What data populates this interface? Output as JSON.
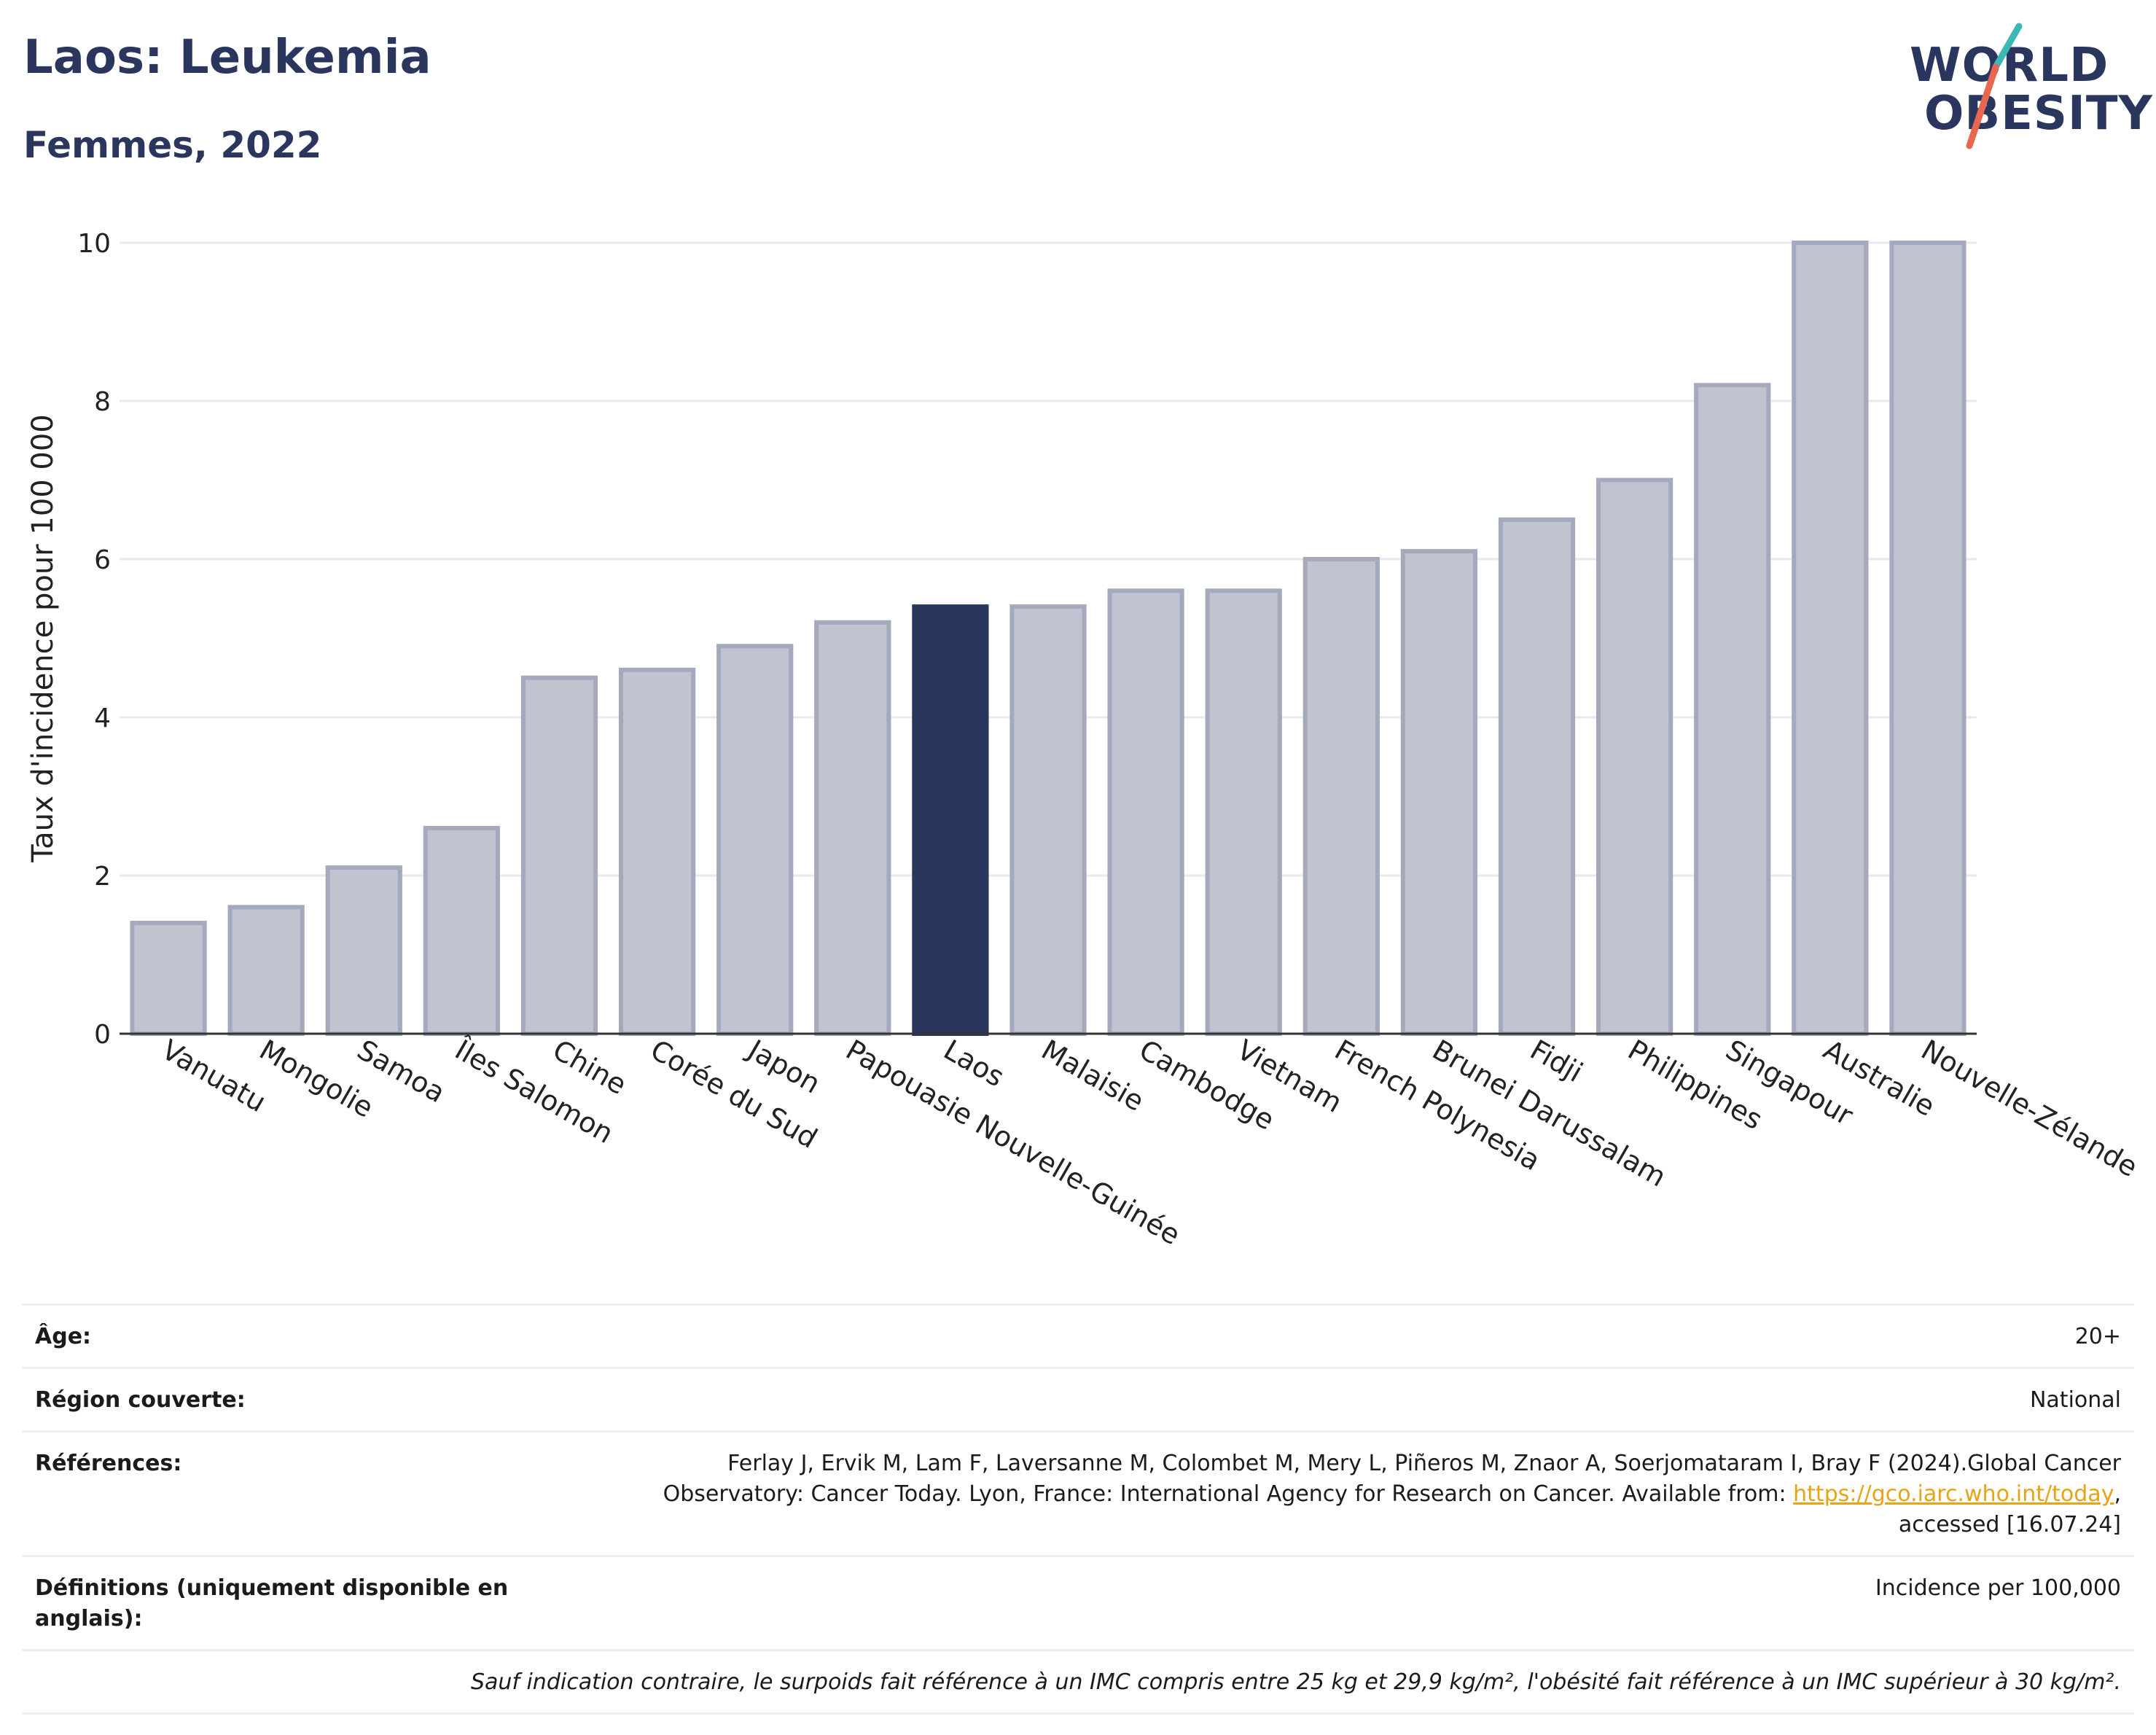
{
  "header": {
    "title": "Laos: Leukemia",
    "subtitle": "Femmes, 2022"
  },
  "logo": {
    "line1": "WORLD",
    "line2": "OBESITY",
    "text_color": "#2b365f",
    "slash_colors": [
      "#3bb8b4",
      "#e8674f"
    ]
  },
  "colors": {
    "bar_default": "#c0c3d0",
    "bar_border": "#a4a9bd",
    "bar_highlight": "#2b365f",
    "grid": "#e8e9ee",
    "axis": "#333333"
  },
  "chart_data": {
    "type": "bar",
    "title": "Laos: Leukemia",
    "subtitle": "Femmes, 2022",
    "xlabel": "",
    "ylabel": "Taux d'incidence pour 100 000",
    "ylim": [
      0,
      10
    ],
    "yticks": [
      0,
      2,
      4,
      6,
      8,
      10
    ],
    "grid": true,
    "highlight": "Laos",
    "categories": [
      "Vanuatu",
      "Mongolie",
      "Samoa",
      "Îles Salomon",
      "Chine",
      "Corée du Sud",
      "Japon",
      "Papouasie Nouvelle-Guinée",
      "Laos",
      "Malaisie",
      "Cambodge",
      "Vietnam",
      "French Polynesia",
      "Brunei Darussalam",
      "Fidji",
      "Philippines",
      "Singapour",
      "Australie",
      "Nouvelle-Zélande"
    ],
    "values": [
      1.4,
      1.6,
      2.1,
      2.6,
      4.5,
      4.6,
      4.9,
      5.2,
      5.4,
      5.4,
      5.6,
      5.6,
      6.0,
      6.1,
      6.5,
      7.0,
      8.2,
      10.0,
      10.0
    ]
  },
  "meta": {
    "age_label": "Âge:",
    "age_value": "20+",
    "region_label": "Région couverte:",
    "region_value": "National",
    "references_label": "Références:",
    "references_text_1": "Ferlay J, Ervik M, Lam F, Laversanne M, Colombet M, Mery L, Piñeros M, Znaor A, Soerjomataram I, Bray F (2024).Global Cancer Observatory: Cancer Today. Lyon, France: International Agency for Research on Cancer. Available from: ",
    "references_link": "https://gco.iarc.who.int/today",
    "references_text_2": ", accessed [16.07.24]",
    "definitions_label": "Définitions (uniquement disponible en anglais):",
    "definitions_value": "Incidence per 100,000",
    "note": "Sauf indication contraire, le surpoids fait référence à un IMC compris entre 25 kg et 29,9 kg/m², l'obésité fait référence à un IMC supérieur à 30 kg/m²."
  }
}
